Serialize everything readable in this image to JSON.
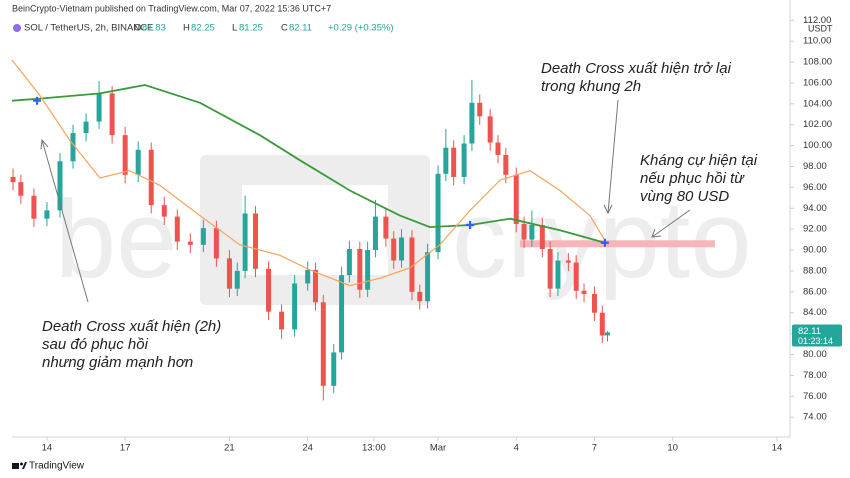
{
  "header": {
    "publisher": "BeinCrypto-Vietnam published on TradingView.com, Mar 07, 2022 15:36 UTC+7",
    "symbol": "SOL / TetherUS, 2h, BINANCE",
    "o": "O",
    "h": "H",
    "l": "L",
    "c": "C",
    "change": "+0.29 (+0.35%)"
  },
  "footer": {
    "brand": "TradingView"
  },
  "chart_data": {
    "type": "candlestick",
    "up_color": "#26a69a",
    "down_color": "#ef5350",
    "xlim": [
      12.66,
      42.5
    ],
    "ylim": [
      72.1,
      112.6
    ],
    "xticks": [
      14,
      17,
      21,
      24,
      {
        "value": 26.54,
        "label": "13:00"
      },
      {
        "value": 29,
        "label": "Mar"
      },
      {
        "value": 32,
        "label": "4"
      },
      {
        "value": 35,
        "label": "7"
      },
      {
        "value": 38,
        "label": "10"
      },
      {
        "value": 42,
        "label": "14"
      }
    ],
    "yticks": [
      {
        "value": 74,
        "label": "74.00"
      },
      {
        "value": 76,
        "label": "76.00"
      },
      {
        "value": 78,
        "label": "78.00"
      },
      {
        "value": 80,
        "label": "80.00"
      },
      {
        "value": 82,
        "label": "82.00"
      },
      {
        "value": 84,
        "label": "84.00"
      },
      {
        "value": 86,
        "label": "86.00"
      },
      {
        "value": 88,
        "label": "88.00"
      },
      {
        "value": 90,
        "label": "90.00"
      },
      {
        "value": 92,
        "label": "92.00"
      },
      {
        "value": 94,
        "label": "94.00"
      },
      {
        "value": 96,
        "label": "96.00"
      },
      {
        "value": 98,
        "label": "98.00"
      },
      {
        "value": 100,
        "label": "100.00"
      },
      {
        "value": 102,
        "label": "102.00"
      },
      {
        "value": 104,
        "label": "104.00"
      },
      {
        "value": 106,
        "label": "106.00"
      },
      {
        "value": 108,
        "label": "108.00"
      },
      {
        "value": 110,
        "label": "110.00"
      },
      {
        "value": 112,
        "label": "112.00"
      }
    ],
    "grid": false,
    "currency": "USDT",
    "countdown": "01:23:14",
    "watermark": {
      "left": "be",
      "right": "crypto"
    },
    "candles": {
      "x": [
        12.7,
        13,
        13.5,
        14,
        14.5,
        15,
        15.5,
        16,
        16.5,
        17,
        17.5,
        18,
        18.5,
        19,
        19.5,
        20,
        20.5,
        21,
        21.3,
        21.6,
        22,
        22.5,
        23,
        23.5,
        24,
        24.3,
        24.6,
        25,
        25.3,
        25.6,
        26,
        26.3,
        26.6,
        27,
        27.3,
        27.6,
        28,
        28.3,
        28.6,
        29,
        29.3,
        29.6,
        30,
        30.3,
        30.6,
        31,
        31.3,
        31.6,
        32,
        32.3,
        32.6,
        33,
        33.3,
        33.6,
        34,
        34.3,
        34.6,
        35,
        35.3,
        35.5
      ],
      "open": [
        97.0,
        96.5,
        95.2,
        93.0,
        93.8,
        98.5,
        101.2,
        102.3,
        105.0,
        101.0,
        97.2,
        99.6,
        94.3,
        93.2,
        90.8,
        90.5,
        92.1,
        89.2,
        86.3,
        88.0,
        93.5,
        88.2,
        84.1,
        82.4,
        86.8,
        88.1,
        85.0,
        77.0,
        80.2,
        87.6,
        90.1,
        86.2,
        90.0,
        93.2,
        91.1,
        89.0,
        91.2,
        86.0,
        85.1,
        89.8,
        97.3,
        99.8,
        97.0,
        100.2,
        104.1,
        102.8,
        100.3,
        99.1,
        97.2,
        92.5,
        91.0,
        92.4,
        90.1,
        86.3,
        89.0,
        88.8,
        86.1,
        85.8,
        84.0,
        81.83
      ],
      "high": [
        97.8,
        97.2,
        95.9,
        94.6,
        99.3,
        102.0,
        103.1,
        106.2,
        105.7,
        101.8,
        100.4,
        100.3,
        95.1,
        93.9,
        91.6,
        92.9,
        92.8,
        90.0,
        88.8,
        95.2,
        94.2,
        88.9,
        84.8,
        87.6,
        88.9,
        88.8,
        85.7,
        81.0,
        88.4,
        90.9,
        90.8,
        90.8,
        94.8,
        93.9,
        91.8,
        92.0,
        91.9,
        86.7,
        90.6,
        98.1,
        101.6,
        100.5,
        101.0,
        106.3,
        104.9,
        103.5,
        101.0,
        99.8,
        97.9,
        93.2,
        93.8,
        93.1,
        90.8,
        89.8,
        89.7,
        89.5,
        86.8,
        86.5,
        84.7,
        82.25
      ],
      "low": [
        95.7,
        94.4,
        92.2,
        92.3,
        93.1,
        97.8,
        100.4,
        101.6,
        100.2,
        96.4,
        96.5,
        93.5,
        92.4,
        90.0,
        89.7,
        89.8,
        88.4,
        85.5,
        85.6,
        87.3,
        87.4,
        83.3,
        81.5,
        81.7,
        86.1,
        84.2,
        75.6,
        76.3,
        79.5,
        86.9,
        85.4,
        85.5,
        89.3,
        90.3,
        88.2,
        88.3,
        85.2,
        84.3,
        84.4,
        89.1,
        96.6,
        96.2,
        96.3,
        99.5,
        102.0,
        99.5,
        98.3,
        96.4,
        91.7,
        90.2,
        90.3,
        89.3,
        85.5,
        85.6,
        88.0,
        85.3,
        85.0,
        83.2,
        81.1,
        81.25
      ],
      "close": [
        96.5,
        95.2,
        93.0,
        93.8,
        98.5,
        101.2,
        102.3,
        105.0,
        101.0,
        97.2,
        99.6,
        94.3,
        93.2,
        90.8,
        90.5,
        92.1,
        89.2,
        86.3,
        88.0,
        93.5,
        88.2,
        84.1,
        82.4,
        86.8,
        88.1,
        85.0,
        77.0,
        80.2,
        87.6,
        90.1,
        86.2,
        90.0,
        93.2,
        91.1,
        89.0,
        91.2,
        86.0,
        85.1,
        89.8,
        97.3,
        99.8,
        97.0,
        100.2,
        104.1,
        102.8,
        100.3,
        99.1,
        97.2,
        92.5,
        91.0,
        92.4,
        90.1,
        86.3,
        89.0,
        88.8,
        86.1,
        85.8,
        84.0,
        81.82,
        82.11
      ]
    },
    "moving_averages": [
      {
        "color": "#3a9a3a",
        "x": [
          12.66,
          13.73,
          16.03,
          17.76,
          19.87,
          22.17,
          23.7,
          25.62,
          27.54,
          28.69,
          30.23,
          31.76,
          33.68,
          35.4
        ],
        "values": [
          104.3,
          104.5,
          105.0,
          105.8,
          104.1,
          101.0,
          98.6,
          95.7,
          93.3,
          92.2,
          92.4,
          93.0,
          91.9,
          90.7
        ]
      },
      {
        "color": "#f7a35c",
        "x": [
          12.66,
          13.73,
          14.88,
          16.03,
          17.18,
          18.33,
          19.87,
          21.4,
          22.94,
          24.09,
          25.62,
          26.77,
          27.92,
          29.07,
          30.23,
          31.38,
          32.53,
          33.68,
          34.83,
          35.4
        ],
        "values": [
          108.2,
          104.8,
          100.5,
          96.9,
          97.6,
          96.2,
          93.3,
          90.5,
          89.5,
          88.1,
          86.6,
          87.3,
          88.3,
          90.5,
          93.8,
          96.7,
          97.6,
          95.7,
          93.3,
          90.9
        ]
      }
    ],
    "markers": {
      "color": "#2962ff",
      "x": [
        13.62,
        30.23,
        35.4
      ],
      "values": [
        104.3,
        92.4,
        90.7
      ]
    },
    "resistance": {
      "color": "#f5b5b9",
      "x": [
        32.14,
        39.62
      ],
      "value": 90.6
    },
    "annotations": [
      {
        "lines": [
          "Death Cross xuất hiện trở lại",
          "trong khung 2h"
        ]
      },
      {
        "lines": [
          "Kháng cự hiện tại",
          "nếu phục hồi từ",
          "vùng 80 USD"
        ]
      },
      {
        "lines": [
          "Death Cross xuất hiện (2h)",
          "sau đó phục hồi",
          "nhưng giảm mạnh hơn"
        ]
      }
    ]
  }
}
